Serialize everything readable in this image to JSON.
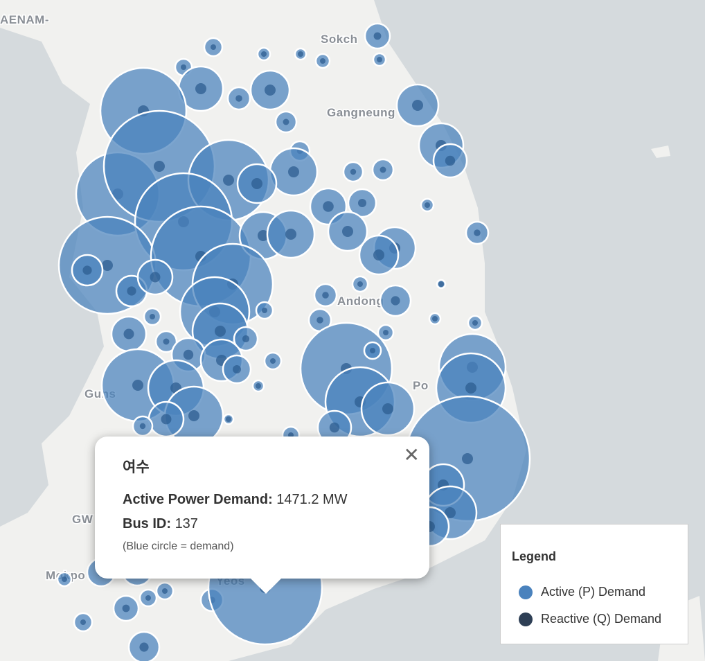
{
  "map": {
    "place_labels": [
      "AENAM-",
      "Sokch",
      "Gangneung",
      "Andong",
      "Guns",
      "Po",
      "GW",
      "Mokpo",
      "Yeos"
    ],
    "popup": {
      "title": "여수",
      "field_1_label": "Active Power Demand:",
      "field_1_value": "1471.2 MW",
      "field_2_label": "Bus ID:",
      "field_2_value": "137",
      "note": "(Blue circle = demand)"
    },
    "legend": {
      "title": "Legend",
      "items": [
        {
          "label": "Active (P) Demand",
          "color": "#4a82bd"
        },
        {
          "label": "Reactive (Q) Demand",
          "color": "#2e3f55"
        }
      ]
    }
  }
}
